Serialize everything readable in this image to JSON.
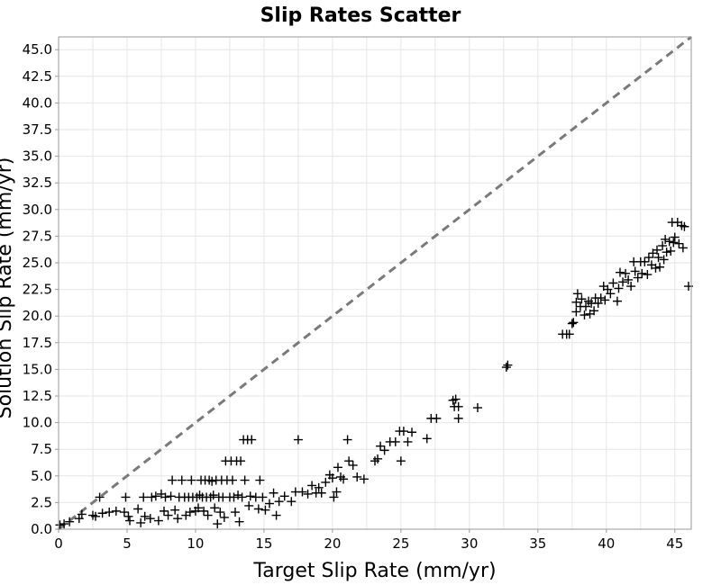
{
  "chart_data": {
    "type": "scatter",
    "title": "Slip Rates Scatter",
    "xlabel": "Target Slip Rate (mm/yr)",
    "ylabel": "Solution Slip Rate (mm/yr)",
    "xlim": [
      0,
      46.2
    ],
    "ylim": [
      0,
      46.2
    ],
    "x_ticks": [
      "0",
      "5",
      "10",
      "15",
      "20",
      "25",
      "30",
      "35",
      "40",
      "45"
    ],
    "y_ticks": [
      "0.0",
      "2.5",
      "5.0",
      "7.5",
      "10.0",
      "12.5",
      "15.0",
      "17.5",
      "20.0",
      "22.5",
      "25.0",
      "27.5",
      "30.0",
      "32.5",
      "35.0",
      "37.5",
      "40.0",
      "42.5",
      "45.0"
    ],
    "grid": true,
    "marker": "plus",
    "reference_line": {
      "style": "dashed",
      "color": "#7a7a7a",
      "from": [
        0,
        0
      ],
      "to": [
        46.2,
        46.2
      ]
    },
    "points": [
      [
        0.1,
        0.4
      ],
      [
        0.4,
        0.5
      ],
      [
        0.8,
        0.7
      ],
      [
        1.5,
        1.0
      ],
      [
        1.7,
        1.4
      ],
      [
        2.5,
        1.3
      ],
      [
        2.7,
        1.2
      ],
      [
        3.0,
        3.0
      ],
      [
        3.2,
        1.5
      ],
      [
        3.7,
        1.6
      ],
      [
        4.2,
        1.7
      ],
      [
        4.8,
        1.6
      ],
      [
        4.9,
        3.0
      ],
      [
        5.1,
        1.2
      ],
      [
        5.2,
        0.8
      ],
      [
        5.8,
        1.9
      ],
      [
        6.0,
        0.6
      ],
      [
        6.2,
        3.0
      ],
      [
        6.3,
        1.2
      ],
      [
        6.7,
        1.0
      ],
      [
        6.8,
        3.0
      ],
      [
        7.1,
        3.1
      ],
      [
        7.3,
        0.8
      ],
      [
        7.5,
        3.3
      ],
      [
        7.7,
        1.7
      ],
      [
        7.8,
        3.0
      ],
      [
        8.0,
        1.3
      ],
      [
        8.2,
        3.1
      ],
      [
        8.3,
        4.6
      ],
      [
        8.5,
        1.8
      ],
      [
        8.7,
        1.0
      ],
      [
        8.8,
        3.0
      ],
      [
        9.0,
        4.6
      ],
      [
        9.2,
        3.0
      ],
      [
        9.3,
        1.3
      ],
      [
        9.5,
        3.0
      ],
      [
        9.6,
        1.6
      ],
      [
        9.7,
        4.6
      ],
      [
        9.8,
        3.0
      ],
      [
        10.0,
        1.7
      ],
      [
        10.1,
        3.0
      ],
      [
        10.2,
        2.0
      ],
      [
        10.3,
        3.2
      ],
      [
        10.4,
        4.6
      ],
      [
        10.5,
        3.0
      ],
      [
        10.6,
        1.7
      ],
      [
        10.7,
        4.6
      ],
      [
        10.8,
        3.0
      ],
      [
        10.9,
        1.3
      ],
      [
        11.0,
        4.6
      ],
      [
        11.1,
        3.0
      ],
      [
        11.2,
        4.5
      ],
      [
        11.3,
        3.2
      ],
      [
        11.4,
        2.0
      ],
      [
        11.5,
        4.6
      ],
      [
        11.6,
        0.5
      ],
      [
        11.7,
        3.0
      ],
      [
        11.8,
        1.6
      ],
      [
        11.9,
        4.6
      ],
      [
        12.0,
        3.0
      ],
      [
        12.1,
        1.1
      ],
      [
        12.2,
        6.4
      ],
      [
        12.3,
        4.6
      ],
      [
        12.5,
        3.0
      ],
      [
        12.6,
        6.4
      ],
      [
        12.7,
        4.6
      ],
      [
        12.8,
        3.0
      ],
      [
        12.9,
        1.6
      ],
      [
        13.0,
        6.4
      ],
      [
        13.1,
        3.2
      ],
      [
        13.2,
        0.7
      ],
      [
        13.3,
        6.4
      ],
      [
        13.4,
        3.0
      ],
      [
        13.5,
        8.4
      ],
      [
        13.6,
        4.6
      ],
      [
        13.8,
        8.4
      ],
      [
        13.9,
        2.2
      ],
      [
        14.0,
        3.1
      ],
      [
        14.1,
        8.4
      ],
      [
        14.4,
        3.0
      ],
      [
        14.6,
        1.9
      ],
      [
        14.7,
        4.6
      ],
      [
        14.9,
        3.0
      ],
      [
        15.1,
        1.8
      ],
      [
        15.4,
        2.4
      ],
      [
        15.7,
        3.4
      ],
      [
        15.9,
        1.3
      ],
      [
        16.1,
        2.6
      ],
      [
        16.5,
        3.1
      ],
      [
        17.0,
        2.6
      ],
      [
        17.3,
        3.5
      ],
      [
        17.5,
        8.4
      ],
      [
        17.8,
        3.5
      ],
      [
        18.2,
        3.3
      ],
      [
        18.5,
        4.1
      ],
      [
        18.8,
        3.4
      ],
      [
        19.0,
        3.9
      ],
      [
        19.2,
        3.4
      ],
      [
        19.5,
        4.4
      ],
      [
        19.8,
        5.1
      ],
      [
        20.0,
        4.8
      ],
      [
        20.1,
        3.0
      ],
      [
        20.3,
        3.5
      ],
      [
        20.4,
        5.8
      ],
      [
        20.6,
        4.9
      ],
      [
        20.8,
        4.7
      ],
      [
        21.1,
        8.4
      ],
      [
        21.2,
        6.4
      ],
      [
        21.5,
        6.0
      ],
      [
        21.8,
        4.9
      ],
      [
        22.3,
        4.7
      ],
      [
        23.1,
        6.4
      ],
      [
        23.3,
        6.6
      ],
      [
        23.5,
        7.8
      ],
      [
        23.8,
        7.4
      ],
      [
        24.2,
        8.2
      ],
      [
        24.6,
        8.2
      ],
      [
        24.9,
        9.2
      ],
      [
        25.0,
        6.4
      ],
      [
        25.2,
        9.2
      ],
      [
        25.5,
        8.2
      ],
      [
        25.8,
        9.1
      ],
      [
        26.9,
        8.5
      ],
      [
        27.2,
        10.4
      ],
      [
        27.6,
        10.4
      ],
      [
        28.8,
        12.1
      ],
      [
        28.9,
        11.5
      ],
      [
        29.0,
        12.2
      ],
      [
        29.2,
        10.4
      ],
      [
        29.2,
        11.5
      ],
      [
        30.6,
        11.4
      ],
      [
        32.7,
        15.2
      ],
      [
        32.8,
        15.4
      ],
      [
        36.8,
        18.3
      ],
      [
        37.1,
        18.3
      ],
      [
        37.3,
        18.3
      ],
      [
        37.5,
        19.3
      ],
      [
        37.6,
        19.4
      ],
      [
        37.8,
        20.4
      ],
      [
        37.8,
        21.3
      ],
      [
        37.9,
        22.1
      ],
      [
        38.1,
        20.9
      ],
      [
        38.2,
        21.6
      ],
      [
        38.4,
        20.1
      ],
      [
        38.5,
        20.9
      ],
      [
        38.7,
        21.4
      ],
      [
        38.8,
        20.2
      ],
      [
        38.9,
        21.2
      ],
      [
        39.1,
        20.5
      ],
      [
        39.2,
        21.7
      ],
      [
        39.4,
        21.2
      ],
      [
        39.6,
        21.7
      ],
      [
        39.8,
        22.8
      ],
      [
        39.9,
        21.5
      ],
      [
        40.1,
        22.5
      ],
      [
        40.3,
        22.1
      ],
      [
        40.5,
        23.1
      ],
      [
        40.8,
        21.4
      ],
      [
        40.9,
        22.6
      ],
      [
        41.0,
        24.1
      ],
      [
        41.2,
        23.2
      ],
      [
        41.4,
        24.0
      ],
      [
        41.6,
        23.4
      ],
      [
        41.8,
        22.8
      ],
      [
        42.0,
        25.1
      ],
      [
        42.1,
        24.2
      ],
      [
        42.3,
        23.6
      ],
      [
        42.5,
        25.1
      ],
      [
        42.6,
        24.0
      ],
      [
        42.8,
        25.1
      ],
      [
        43.0,
        23.9
      ],
      [
        43.1,
        25.5
      ],
      [
        43.3,
        24.8
      ],
      [
        43.4,
        25.9
      ],
      [
        43.6,
        24.5
      ],
      [
        43.7,
        26.2
      ],
      [
        43.8,
        25.5
      ],
      [
        43.9,
        24.6
      ],
      [
        44.1,
        26.6
      ],
      [
        44.2,
        25.3
      ],
      [
        44.3,
        27.2
      ],
      [
        44.4,
        26.0
      ],
      [
        44.6,
        27.0
      ],
      [
        44.7,
        26.1
      ],
      [
        44.8,
        28.8
      ],
      [
        44.9,
        26.9
      ],
      [
        45.0,
        27.4
      ],
      [
        45.2,
        28.8
      ],
      [
        45.3,
        26.8
      ],
      [
        45.5,
        28.5
      ],
      [
        45.6,
        26.4
      ],
      [
        45.7,
        28.4
      ],
      [
        46.0,
        22.8
      ]
    ]
  }
}
